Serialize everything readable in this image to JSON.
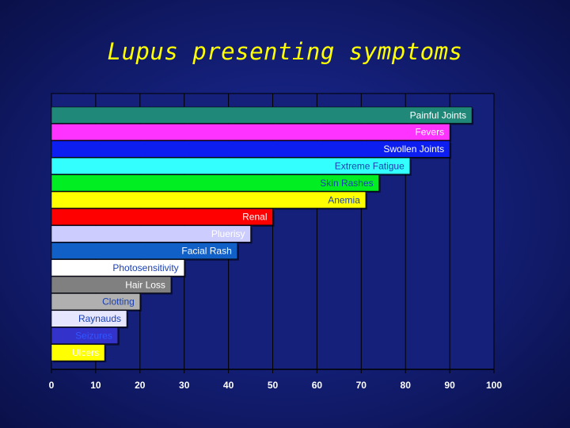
{
  "title": "Lupus presenting symptoms",
  "chart_data": {
    "type": "bar",
    "orientation": "horizontal",
    "title": "Lupus presenting symptoms",
    "xlim": [
      0,
      100
    ],
    "xticks": [
      0,
      10,
      20,
      30,
      40,
      50,
      60,
      70,
      80,
      90,
      100
    ],
    "grid": true,
    "categories": [
      "Painful Joints",
      "Fevers",
      "Swollen Joints",
      "Extreme Fatigue",
      "Skin Rashes",
      "Anemia",
      "Renal",
      "Pluerisy",
      "Facial Rash",
      "Photosensitivity",
      "Hair Loss",
      "Clotting",
      "Raynauds",
      "Seizures",
      "Ulcers"
    ],
    "values": [
      95,
      90,
      90,
      81,
      74,
      71,
      50,
      45,
      42,
      30,
      27,
      20,
      17,
      15,
      12
    ],
    "bar_colors": [
      "#1f8878",
      "#ff33ff",
      "#0d1ef0",
      "#33ffff",
      "#00ee22",
      "#ffff00",
      "#ff0000",
      "#ccccff",
      "#1060c8",
      "#ffffff",
      "#808080",
      "#b0b0b0",
      "#e6e6ff",
      "#3333cc",
      "#ffff00"
    ],
    "label_colors": [
      "#ffffff",
      "#ffffff",
      "#ffffff",
      "#1a3fb0",
      "#1a3fb0",
      "#1a3fb0",
      "#ffffff",
      "#ffffff",
      "#ffffff",
      "#1a3fb0",
      "#ffffff",
      "#1a3fb0",
      "#1a3fb0",
      "#3355ff",
      "#ffffff"
    ]
  }
}
